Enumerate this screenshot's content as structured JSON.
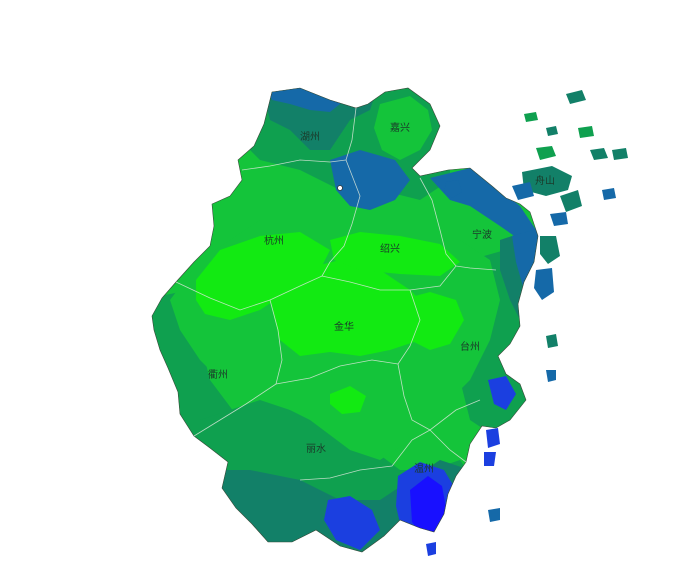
{
  "map": {
    "cities": [
      {
        "id": "huzhou",
        "label": "湖州"
      },
      {
        "id": "jiaxing",
        "label": "嘉兴"
      },
      {
        "id": "zhoushan",
        "label": "舟山"
      },
      {
        "id": "hangzhou",
        "label": "杭州"
      },
      {
        "id": "shaoxing",
        "label": "绍兴"
      },
      {
        "id": "ningbo",
        "label": "宁波"
      },
      {
        "id": "jinhua",
        "label": "金华"
      },
      {
        "id": "taizhou",
        "label": "台州"
      },
      {
        "id": "quzhou",
        "label": "衢州"
      },
      {
        "id": "lishui",
        "label": "丽水"
      },
      {
        "id": "wenzhou",
        "label": "温州"
      }
    ],
    "colors": {
      "bright_green": "#12ea12",
      "mid_green": "#14c43a",
      "teal_green": "#0fa04f",
      "deep_teal": "#128068",
      "blue_teal": "#1569a8",
      "blue": "#1b3fe0",
      "pure_blue": "#1810ff"
    }
  }
}
